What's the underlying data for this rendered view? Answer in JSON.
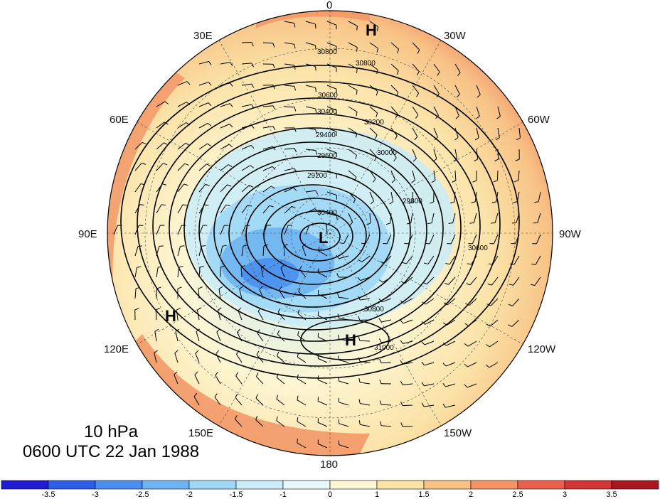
{
  "title": {
    "level": "10 hPa",
    "time": "0600 UTC 22 Jan 1988"
  },
  "longitude_labels": [
    "0",
    "30W",
    "60W",
    "90W",
    "120W",
    "150W",
    "180",
    "150E",
    "120E",
    "90E",
    "60E",
    "30E"
  ],
  "pressure_centers": {
    "low": [
      "L"
    ],
    "high": [
      "H",
      "H",
      "H"
    ]
  },
  "contour_labels": [
    "30800",
    "30800",
    "30600",
    "30400",
    "30200",
    "30000",
    "29800",
    "29600",
    "29400",
    "29200",
    "30800",
    "31000",
    "30600",
    "30400"
  ],
  "colorbar": {
    "ticks": [
      "-3.5",
      "-3",
      "-2.5",
      "-2",
      "-1.5",
      "-1",
      "0",
      "1",
      "1.5",
      "2",
      "2.5",
      "3",
      "3.5"
    ],
    "colors": [
      "#1f1bd1",
      "#2d5fe6",
      "#4a8fee",
      "#6fb4f2",
      "#9fd7f6",
      "#c9ecf8",
      "#e8f7fb",
      "#fdf6d3",
      "#fbe3a8",
      "#f8c285",
      "#f29464",
      "#e9604c",
      "#d23535",
      "#a9161f"
    ]
  }
}
